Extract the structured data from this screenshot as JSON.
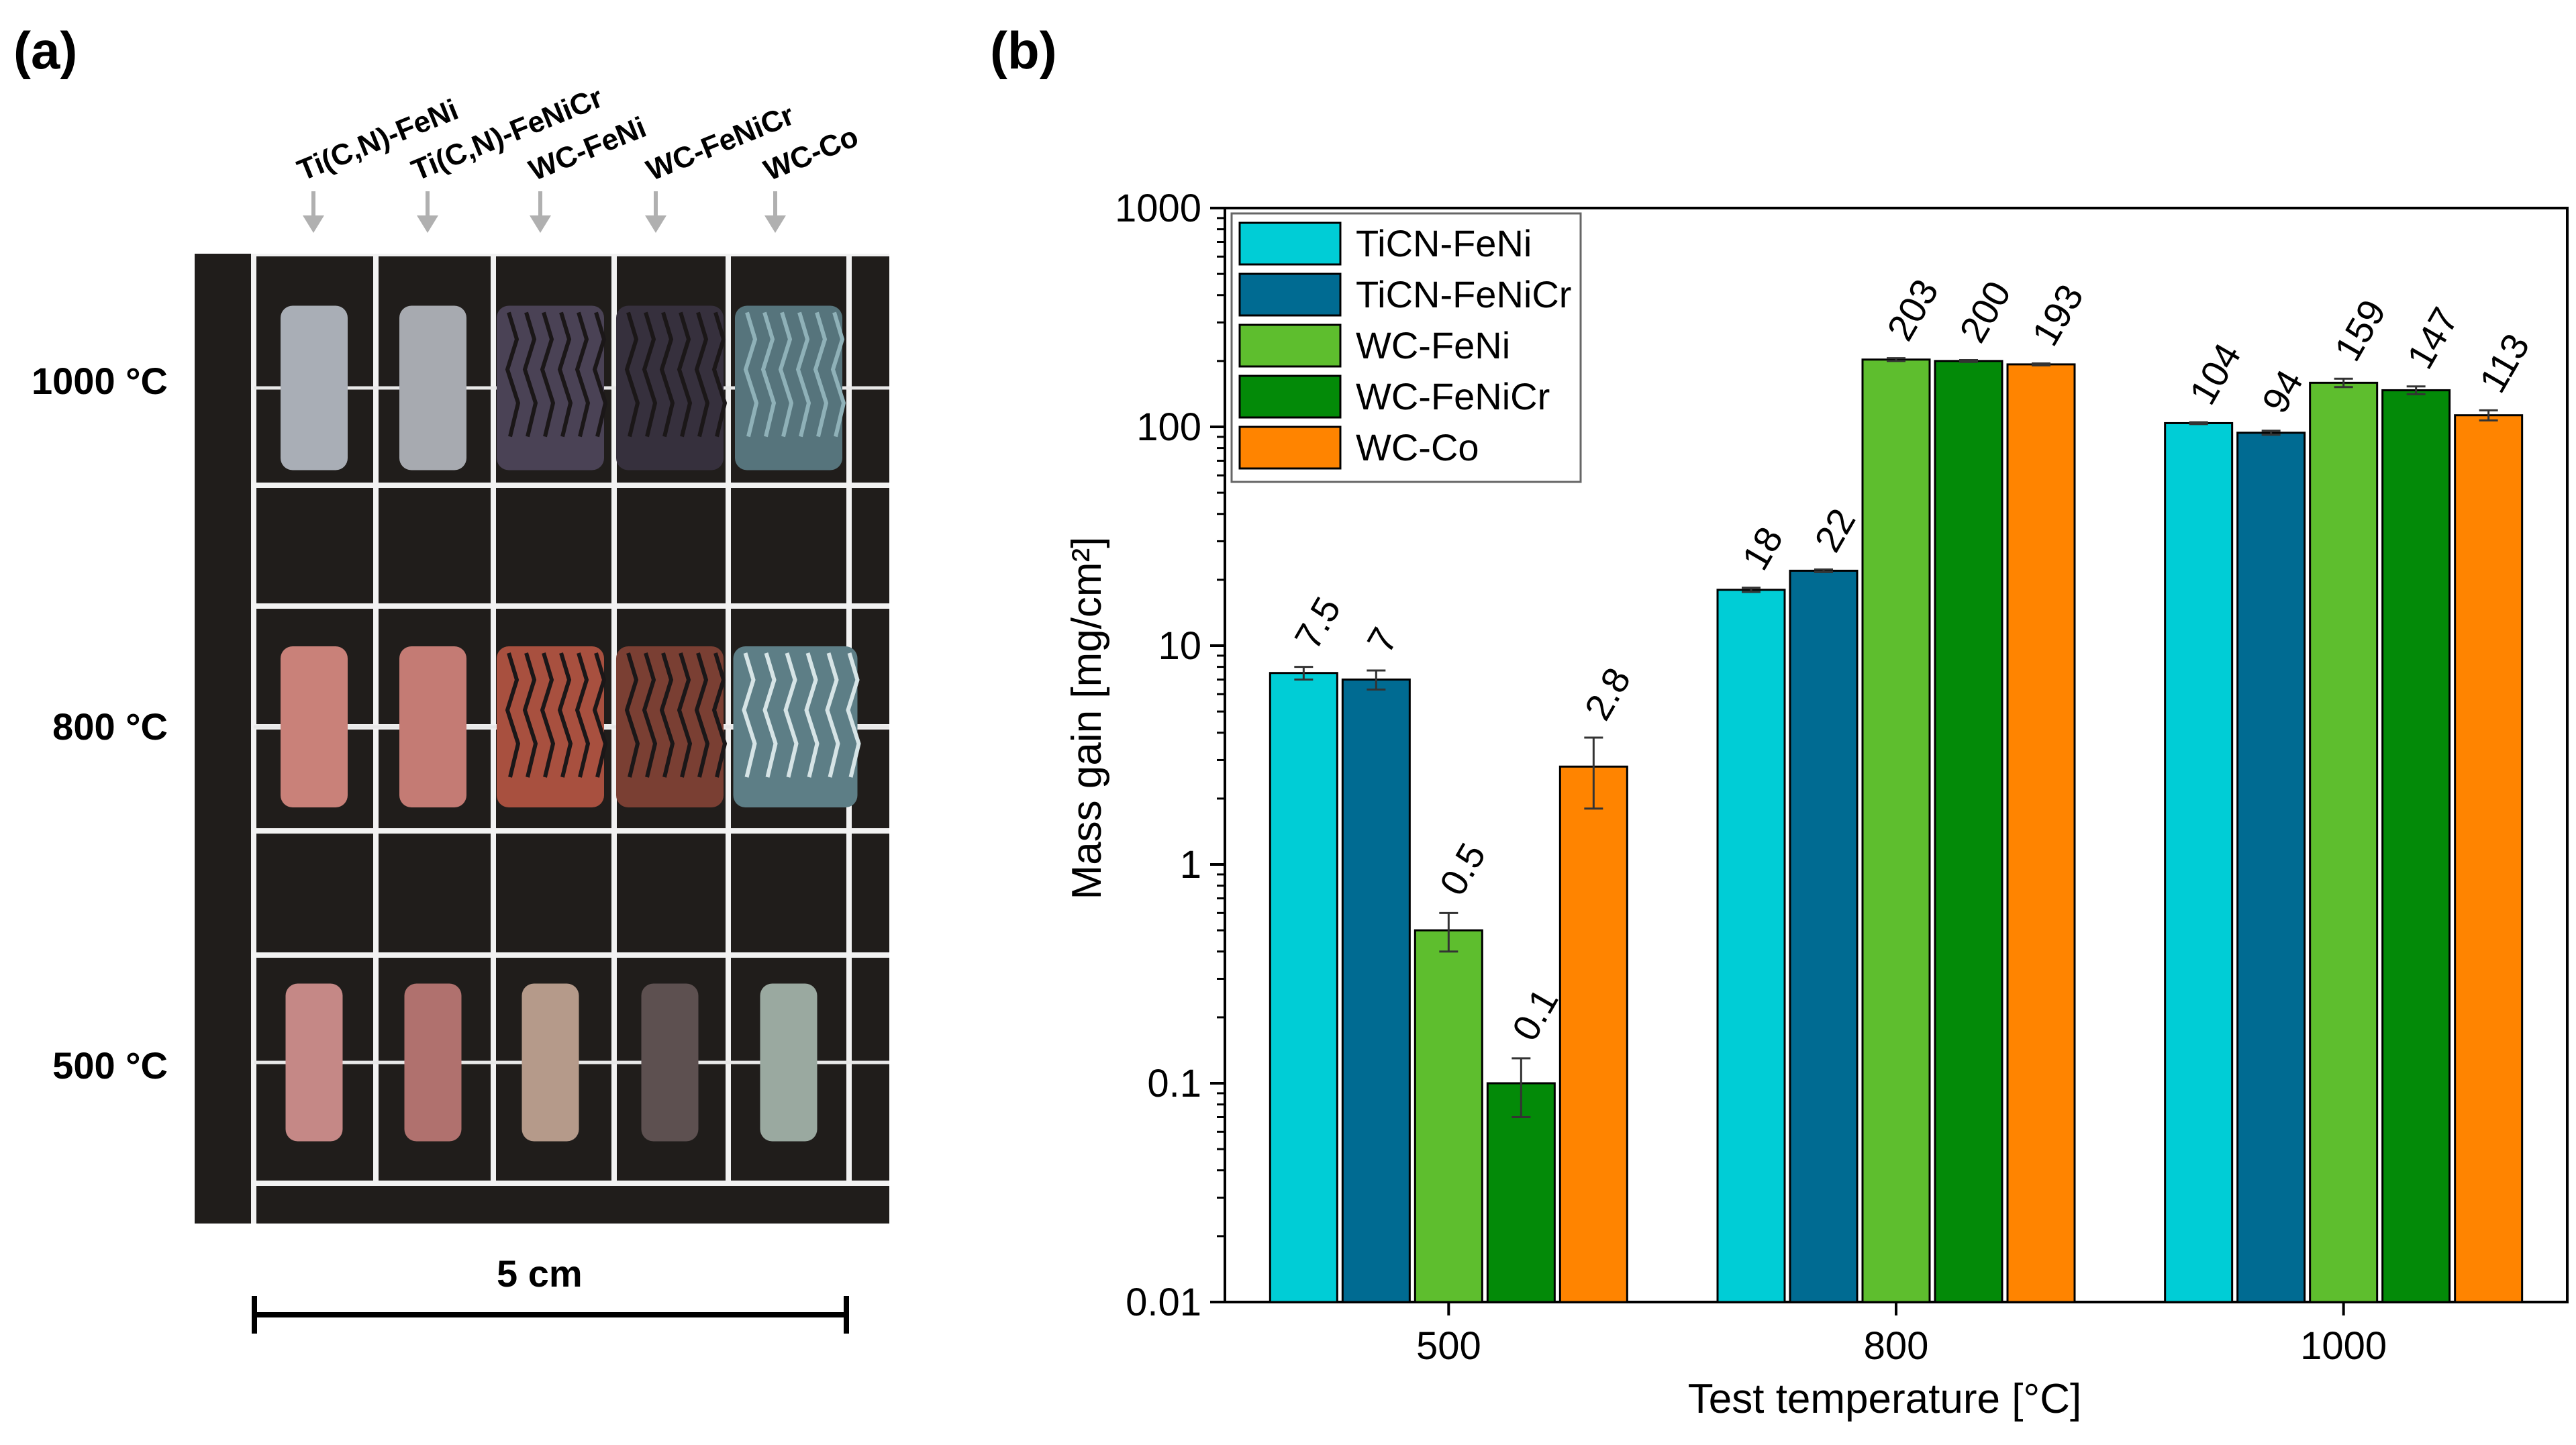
{
  "panel_a": {
    "label": "(a)",
    "columns": [
      "Ti(C,N)-FeNi",
      "Ti(C,N)-FeNiCr",
      "WC-FeNi",
      "WC-FeNiCr",
      "WC-Co"
    ],
    "rows": [
      "1000 °C",
      "800 °C",
      "500 °C"
    ],
    "scale_label": "5 cm",
    "sample_colors": {
      "1000 °C": [
        "#a9aeb6",
        "#a7aab0",
        "#4a4255",
        "#36303d",
        "#56747c"
      ],
      "800 °C": [
        "#c98179",
        "#c47b74",
        "#a8503f",
        "#7a3f33",
        "#5d7e86"
      ],
      "500 °C": [
        "#c58886",
        "#b0716e",
        "#b59a8a",
        "#5d5050",
        "#9aa9a0"
      ]
    }
  },
  "chart_data": {
    "type": "bar",
    "label": "(b)",
    "title": "",
    "xlabel": "Test temperature [°C]",
    "ylabel": "Mass gain [mg/cm²]",
    "yscale": "log",
    "ylim": [
      0.01,
      1000
    ],
    "yticks": [
      "0.01",
      "0.1",
      "1",
      "10",
      "100",
      "1000"
    ],
    "categories": [
      "500",
      "800",
      "1000"
    ],
    "legend_position": "top-left",
    "series": [
      {
        "name": "TiCN-FeNi",
        "color": "#00cdd6",
        "values": [
          7.5,
          18,
          104
        ],
        "labels": [
          "7.5",
          "18",
          "104"
        ],
        "err": [
          0.5,
          0.4,
          1
        ]
      },
      {
        "name": "TiCN-FeNiCr",
        "color": "#006b92",
        "values": [
          7,
          22,
          94
        ],
        "labels": [
          "7",
          "22",
          "94"
        ],
        "err": [
          0.7,
          0.3,
          2
        ]
      },
      {
        "name": "WC-FeNi",
        "color": "#5ebe2e",
        "values": [
          0.5,
          203,
          159
        ],
        "labels": [
          "0.5",
          "203",
          "159"
        ],
        "err": [
          0.1,
          3,
          7
        ]
      },
      {
        "name": "WC-FeNiCr",
        "color": "#038a08",
        "values": [
          0.1,
          200,
          147
        ],
        "labels": [
          "0.1",
          "200",
          "147"
        ],
        "err": [
          0.03,
          2,
          6
        ]
      },
      {
        "name": "WC-Co",
        "color": "#ff8400",
        "values": [
          2.8,
          193,
          113
        ],
        "labels": [
          "2.8",
          "193",
          "113"
        ],
        "err": [
          1.0,
          2,
          6
        ]
      }
    ]
  }
}
